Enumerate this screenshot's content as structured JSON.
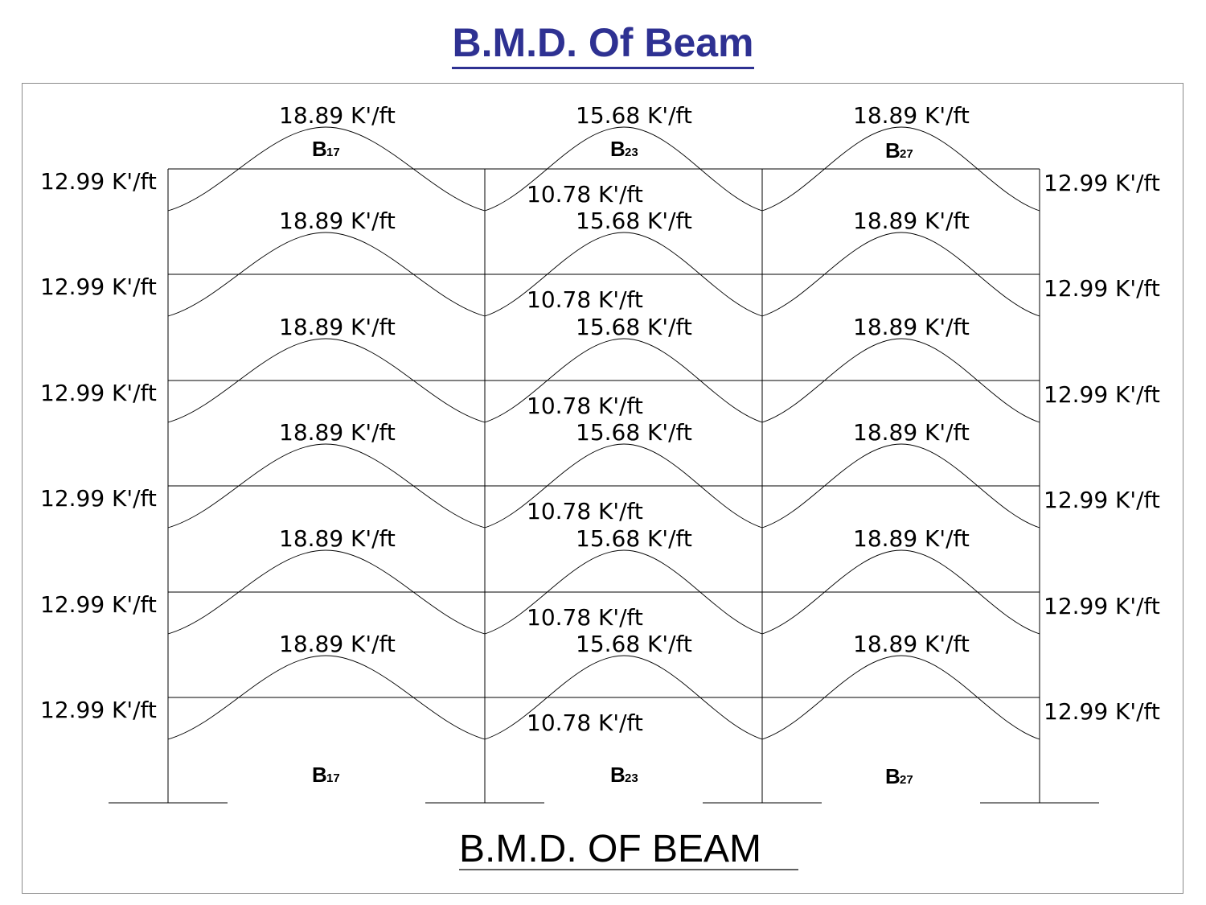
{
  "title": "B.M.D.  Of  Beam",
  "caption": "B.M.D.   OF    BEAM",
  "beams": [
    {
      "prefix": "B",
      "subscript": "17"
    },
    {
      "prefix": "B",
      "subscript": "23"
    },
    {
      "prefix": "B",
      "subscript": "27"
    }
  ],
  "spans": [
    {
      "beam_index": 0,
      "max_moment": "18.89 K'/ft"
    },
    {
      "beam_index": 1,
      "max_moment": "15.68 K'/ft"
    },
    {
      "beam_index": 2,
      "max_moment": "18.89 K'/ft"
    }
  ],
  "left_support_moment": "12.99 K'/ft",
  "right_support_moment": "12.99 K'/ft",
  "interior_support_moment": "10.78 K'/ft",
  "floors": 6,
  "colors": {
    "title": "#2e3192",
    "line": "#000000",
    "frame": "#8a8a8a"
  }
}
